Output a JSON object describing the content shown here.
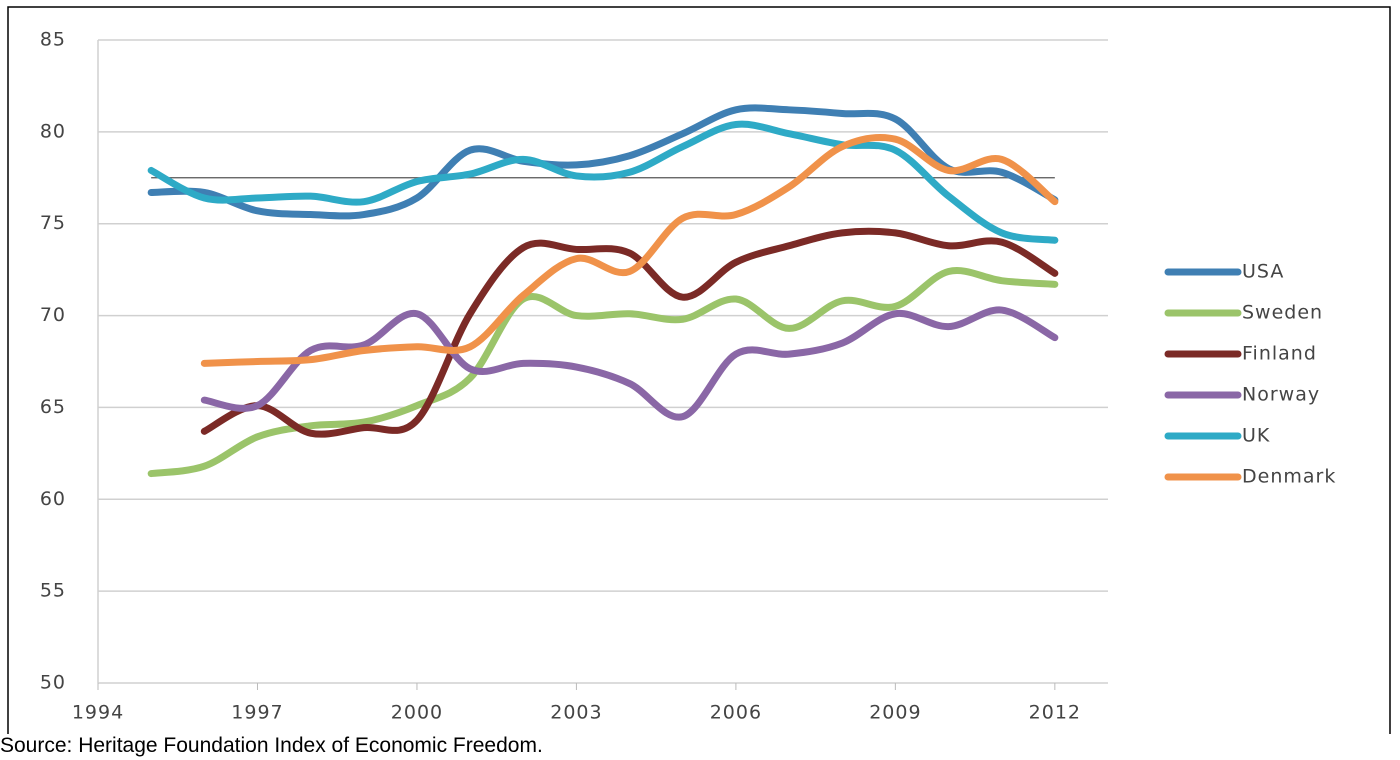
{
  "chart_data": {
    "type": "line",
    "source": "Source: Heritage Foundation Index of Economic Freedom.",
    "x": [
      1995,
      1996,
      1997,
      1998,
      1999,
      2000,
      2001,
      2002,
      2003,
      2004,
      2005,
      2006,
      2007,
      2008,
      2009,
      2010,
      2011,
      2012
    ],
    "xlim": [
      1994,
      2013
    ],
    "xticks": [
      1994,
      1997,
      2000,
      2003,
      2006,
      2009,
      2012
    ],
    "ylim": [
      50,
      85
    ],
    "yticks": [
      50,
      55,
      60,
      65,
      70,
      75,
      80,
      85
    ],
    "grid": true,
    "reference_line": 77.5,
    "legend": "right",
    "series": [
      {
        "name": "USA",
        "color": "#3f7fb3",
        "values": [
          76.7,
          76.7,
          75.7,
          75.5,
          75.5,
          76.4,
          79.0,
          78.4,
          78.2,
          78.7,
          79.9,
          81.2,
          81.2,
          81.0,
          80.7,
          78.0,
          77.8,
          76.3
        ]
      },
      {
        "name": "Sweden",
        "color": "#9bc46a",
        "values": [
          61.4,
          61.8,
          63.4,
          64.0,
          64.2,
          65.1,
          66.6,
          70.9,
          70.0,
          70.1,
          69.8,
          70.9,
          69.3,
          70.8,
          70.5,
          72.4,
          71.9,
          71.7
        ]
      },
      {
        "name": "Finland",
        "color": "#7b2a26",
        "values": [
          null,
          63.7,
          65.1,
          63.6,
          63.9,
          64.3,
          70.1,
          73.7,
          73.6,
          73.4,
          71.0,
          72.9,
          73.8,
          74.5,
          74.5,
          73.8,
          74.0,
          72.3
        ]
      },
      {
        "name": "Norway",
        "color": "#8a67a6",
        "values": [
          null,
          65.4,
          65.1,
          68.1,
          68.4,
          70.1,
          67.1,
          67.4,
          67.2,
          66.3,
          64.5,
          67.9,
          67.9,
          68.5,
          70.1,
          69.4,
          70.3,
          68.8
        ]
      },
      {
        "name": "UK",
        "color": "#2eaac6",
        "values": [
          77.9,
          76.4,
          76.4,
          76.5,
          76.2,
          77.3,
          77.7,
          78.5,
          77.6,
          77.8,
          79.2,
          80.4,
          79.9,
          79.3,
          79.0,
          76.5,
          74.5,
          74.1
        ]
      },
      {
        "name": "Denmark",
        "color": "#f0924a",
        "values": [
          null,
          67.4,
          67.5,
          67.6,
          68.1,
          68.3,
          68.3,
          71.1,
          73.1,
          72.4,
          75.3,
          75.5,
          77.0,
          79.2,
          79.6,
          77.9,
          78.5,
          76.2
        ]
      }
    ]
  }
}
